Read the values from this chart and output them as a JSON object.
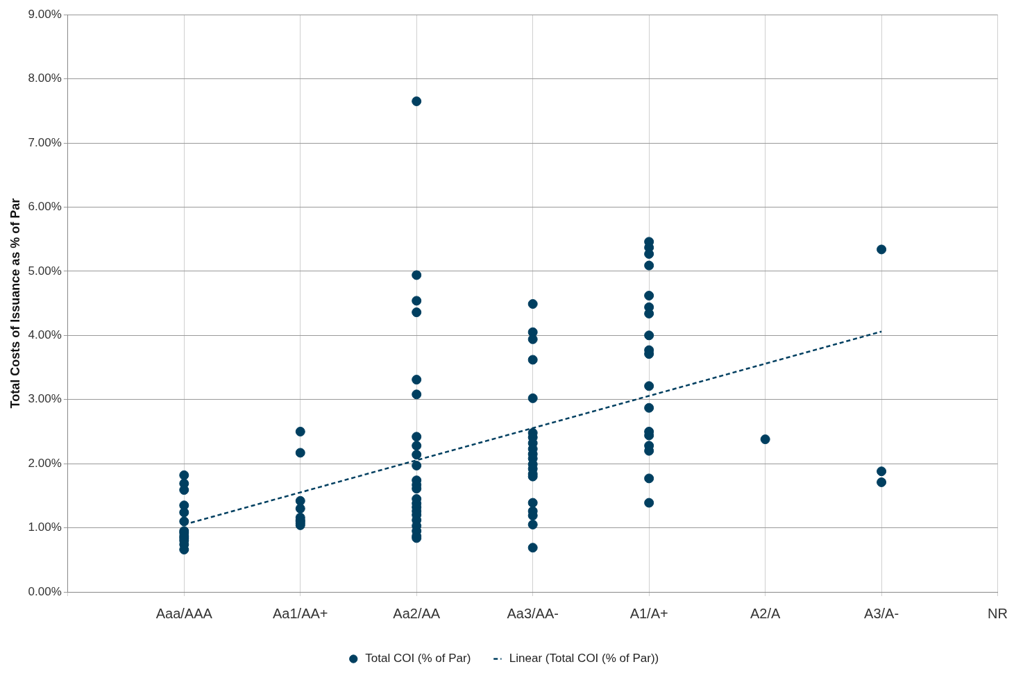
{
  "chart_data": {
    "type": "scatter",
    "ylabel": "Total Costs of Issuance as % of Par",
    "categories": [
      "Aaa/AAA",
      "Aa1/AA+",
      "Aa2/AA",
      "Aa3/AA-",
      "A1/A+",
      "A2/A",
      "A3/A-",
      "NR"
    ],
    "ylim": [
      0,
      9
    ],
    "yticks": [
      {
        "value": 0,
        "label": "0.00%"
      },
      {
        "value": 1,
        "label": "1.00%"
      },
      {
        "value": 2,
        "label": "2.00%"
      },
      {
        "value": 3,
        "label": "3.00%"
      },
      {
        "value": 4,
        "label": "4.00%"
      },
      {
        "value": 5,
        "label": "5.00%"
      },
      {
        "value": 6,
        "label": "6.00%"
      },
      {
        "value": 7,
        "label": "7.00%"
      },
      {
        "value": 8,
        "label": "8.00%"
      },
      {
        "value": 9,
        "label": "9.00%"
      }
    ],
    "grid": true,
    "legend": "bottom",
    "marker": "circle",
    "series": [
      {
        "name": "Total COI (% of Par)",
        "type": "scatter",
        "color": "#003f60",
        "x": [
          "Aaa/AAA",
          "Aaa/AAA",
          "Aaa/AAA",
          "Aaa/AAA",
          "Aaa/AAA",
          "Aaa/AAA",
          "Aaa/AAA",
          "Aaa/AAA",
          "Aaa/AAA",
          "Aaa/AAA",
          "Aaa/AAA",
          "Aaa/AAA",
          "Aaa/AAA",
          "Aa1/AA+",
          "Aa1/AA+",
          "Aa1/AA+",
          "Aa1/AA+",
          "Aa1/AA+",
          "Aa1/AA+",
          "Aa1/AA+",
          "Aa1/AA+",
          "Aa1/AA+",
          "Aa2/AA",
          "Aa2/AA",
          "Aa2/AA",
          "Aa2/AA",
          "Aa2/AA",
          "Aa2/AA",
          "Aa2/AA",
          "Aa2/AA",
          "Aa2/AA",
          "Aa2/AA",
          "Aa2/AA",
          "Aa2/AA",
          "Aa2/AA",
          "Aa2/AA",
          "Aa2/AA",
          "Aa2/AA",
          "Aa2/AA",
          "Aa2/AA",
          "Aa2/AA",
          "Aa2/AA",
          "Aa2/AA",
          "Aa2/AA",
          "Aa2/AA",
          "Aa3/AA-",
          "Aa3/AA-",
          "Aa3/AA-",
          "Aa3/AA-",
          "Aa3/AA-",
          "Aa3/AA-",
          "Aa3/AA-",
          "Aa3/AA-",
          "Aa3/AA-",
          "Aa3/AA-",
          "Aa3/AA-",
          "Aa3/AA-",
          "Aa3/AA-",
          "Aa3/AA-",
          "Aa3/AA-",
          "Aa3/AA-",
          "Aa3/AA-",
          "Aa3/AA-",
          "Aa3/AA-",
          "Aa3/AA-",
          "A1/A+",
          "A1/A+",
          "A1/A+",
          "A1/A+",
          "A1/A+",
          "A1/A+",
          "A1/A+",
          "A1/A+",
          "A1/A+",
          "A1/A+",
          "A1/A+",
          "A1/A+",
          "A1/A+",
          "A1/A+",
          "A1/A+",
          "A1/A+",
          "A1/A+",
          "A1/A+",
          "A2/A",
          "A3/A-",
          "A3/A-",
          "A3/A-"
        ],
        "values": [
          1.82,
          1.69,
          1.59,
          1.35,
          1.24,
          1.1,
          0.95,
          0.92,
          0.87,
          0.84,
          0.8,
          0.74,
          0.66,
          2.5,
          2.17,
          1.42,
          1.3,
          1.16,
          1.12,
          1.1,
          1.07,
          1.04,
          7.65,
          4.94,
          4.54,
          4.36,
          3.31,
          3.08,
          2.42,
          2.28,
          2.14,
          1.97,
          1.74,
          1.67,
          1.61,
          1.45,
          1.38,
          1.32,
          1.26,
          1.2,
          1.12,
          1.03,
          0.95,
          0.87,
          0.84,
          4.49,
          4.05,
          3.94,
          3.62,
          3.02,
          2.48,
          2.41,
          2.32,
          2.23,
          2.15,
          2.08,
          1.99,
          1.92,
          1.84,
          1.8,
          1.39,
          1.26,
          1.19,
          1.05,
          0.69,
          5.46,
          5.37,
          5.27,
          5.09,
          4.62,
          4.44,
          4.34,
          4.0,
          3.77,
          3.71,
          3.21,
          2.87,
          2.5,
          2.44,
          2.28,
          2.2,
          1.77,
          1.39,
          2.38,
          5.34,
          1.88,
          1.71
        ]
      },
      {
        "name": "Linear (Total COI (% of Par))",
        "type": "line",
        "color": "#003f60",
        "line_style": "dashed",
        "marker": "none",
        "x": [
          "Aaa/AAA",
          "A3/A-"
        ],
        "values": [
          1.05,
          4.06
        ]
      }
    ]
  }
}
